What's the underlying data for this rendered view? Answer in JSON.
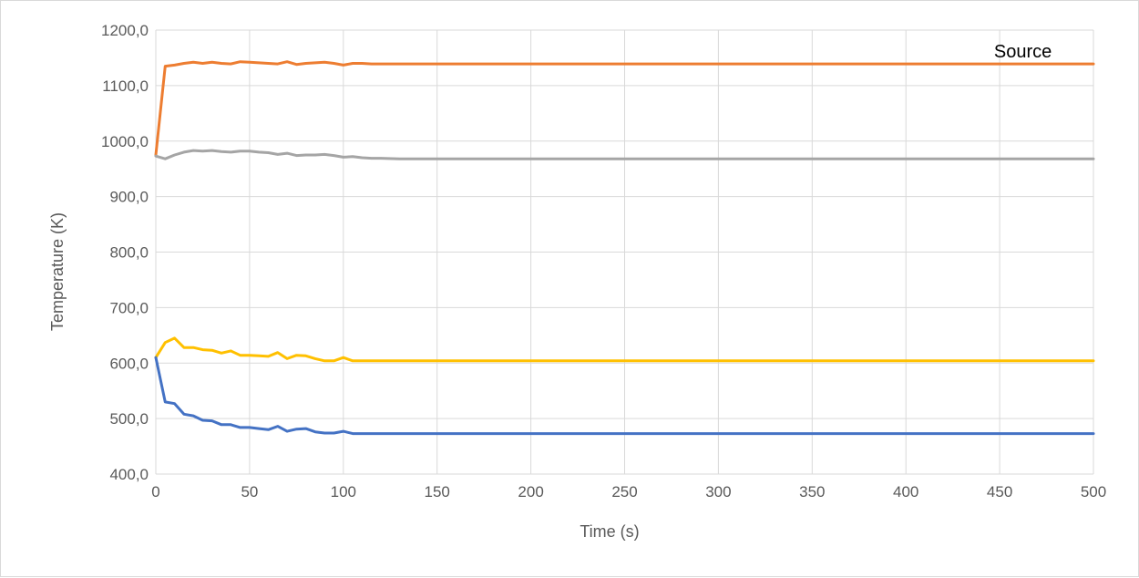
{
  "chart_data": {
    "type": "line",
    "title": "",
    "xlabel": "Time (s)",
    "ylabel": "Temperature (K)",
    "xlim": [
      0,
      500
    ],
    "ylim": [
      400,
      1200
    ],
    "x_ticks": [
      0,
      50,
      100,
      150,
      200,
      250,
      300,
      350,
      400,
      450,
      500
    ],
    "y_ticks": [
      400,
      500,
      600,
      700,
      800,
      900,
      1000,
      1100,
      1200
    ],
    "x_tick_labels": [
      "0",
      "50",
      "100",
      "150",
      "200",
      "250",
      "300",
      "350",
      "400",
      "450",
      "500"
    ],
    "y_tick_labels": [
      "400,0",
      "500,0",
      "600,0",
      "700,0",
      "800,0",
      "900,0",
      "1000,0",
      "1100,0",
      "1200,0"
    ],
    "grid": {
      "vertical": true,
      "horizontal": true,
      "color": "#d9d9d9"
    },
    "annotations": [
      {
        "text": "Source",
        "series_index": 0
      }
    ],
    "series": [
      {
        "color": "#ed7d31",
        "x": [
          0,
          5,
          10,
          15,
          20,
          25,
          30,
          35,
          40,
          45,
          50,
          55,
          60,
          65,
          70,
          75,
          80,
          85,
          90,
          95,
          100,
          105,
          110,
          115,
          120,
          130,
          150,
          200,
          250,
          300,
          350,
          400,
          450,
          500
        ],
        "y": [
          975,
          1135,
          1137,
          1140,
          1142,
          1140,
          1142,
          1140,
          1139,
          1143,
          1142,
          1141,
          1140,
          1139,
          1143,
          1138,
          1140,
          1141,
          1142,
          1140,
          1137,
          1140,
          1140,
          1139,
          1139,
          1139,
          1139,
          1139,
          1139,
          1139,
          1139,
          1139,
          1139,
          1139
        ]
      },
      {
        "color": "#a5a5a5",
        "x": [
          0,
          5,
          10,
          15,
          20,
          25,
          30,
          35,
          40,
          45,
          50,
          55,
          60,
          65,
          70,
          75,
          80,
          85,
          90,
          95,
          100,
          105,
          110,
          115,
          120,
          130,
          150,
          200,
          250,
          300,
          350,
          400,
          450,
          500
        ],
        "y": [
          973,
          968,
          975,
          980,
          983,
          982,
          983,
          981,
          980,
          982,
          982,
          980,
          979,
          976,
          978,
          974,
          975,
          975,
          976,
          974,
          971,
          972,
          970,
          969,
          969,
          968,
          968,
          968,
          968,
          968,
          968,
          968,
          968,
          968
        ]
      },
      {
        "color": "#ffc000",
        "x": [
          0,
          5,
          10,
          15,
          20,
          25,
          30,
          35,
          40,
          45,
          50,
          55,
          60,
          65,
          70,
          75,
          80,
          85,
          90,
          95,
          100,
          105,
          110,
          120,
          130,
          150,
          200,
          250,
          300,
          350,
          400,
          450,
          500
        ],
        "y": [
          610,
          637,
          645,
          628,
          628,
          624,
          623,
          618,
          622,
          614,
          614,
          613,
          612,
          619,
          608,
          614,
          613,
          608,
          604,
          604,
          610,
          604,
          604,
          604,
          604,
          604,
          604,
          604,
          604,
          604,
          604,
          604,
          604
        ]
      },
      {
        "color": "#4472c4",
        "x": [
          0,
          5,
          10,
          15,
          20,
          25,
          30,
          35,
          40,
          45,
          50,
          55,
          60,
          65,
          70,
          75,
          80,
          85,
          90,
          95,
          100,
          105,
          110,
          120,
          130,
          150,
          200,
          250,
          300,
          350,
          400,
          450,
          500
        ],
        "y": [
          610,
          530,
          527,
          508,
          505,
          497,
          496,
          489,
          489,
          484,
          484,
          482,
          480,
          486,
          477,
          481,
          482,
          476,
          474,
          474,
          477,
          473,
          473,
          473,
          473,
          473,
          473,
          473,
          473,
          473,
          473,
          473,
          473
        ]
      }
    ]
  }
}
